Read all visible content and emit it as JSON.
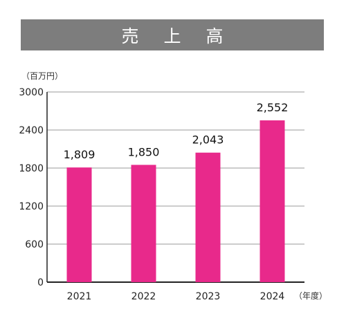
{
  "chart_data": {
    "type": "bar",
    "title": "売 上 高",
    "ylabel": "（百万円）",
    "xlabel": "（年度）",
    "categories": [
      "2021",
      "2022",
      "2023",
      "2024"
    ],
    "values": [
      1809,
      1850,
      2043,
      2552
    ],
    "data_labels": [
      "1,809",
      "1,850",
      "2,043",
      "2,552"
    ],
    "yticks": [
      0,
      600,
      1200,
      1800,
      2400,
      3000
    ],
    "ylim": [
      0,
      3000
    ],
    "grid": true,
    "bar_color": "#e8298b",
    "title_bg_color": "#7d7d7d"
  }
}
